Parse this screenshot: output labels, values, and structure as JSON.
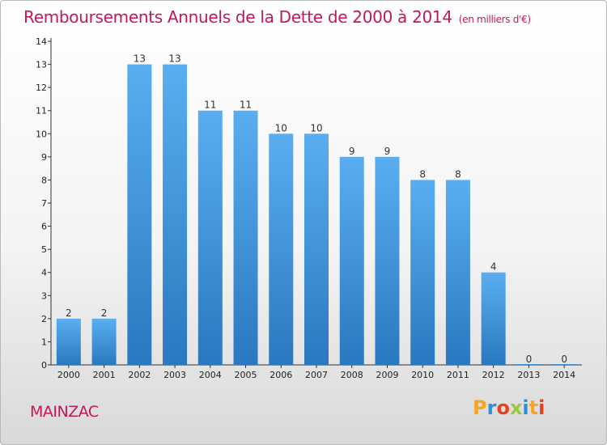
{
  "chart_data": {
    "type": "bar",
    "title": "Remboursements Annuels de la Dette de 2000 à 2014",
    "unit": "(en milliers d'€)",
    "categories": [
      "2000",
      "2001",
      "2002",
      "2003",
      "2004",
      "2005",
      "2006",
      "2007",
      "2008",
      "2009",
      "2010",
      "2011",
      "2012",
      "2013",
      "2014"
    ],
    "values": [
      2,
      2,
      13,
      13,
      11,
      11,
      10,
      10,
      9,
      9,
      8,
      8,
      4,
      0,
      0
    ],
    "value_labels": [
      "2",
      "2",
      "13",
      "13",
      "11",
      "11",
      "10",
      "10",
      "9",
      "9",
      "8",
      "8",
      "4",
      "0",
      "0"
    ],
    "ylim": [
      0,
      14
    ],
    "yticks": [
      0,
      1,
      2,
      3,
      4,
      5,
      6,
      7,
      8,
      9,
      10,
      11,
      12,
      13,
      14
    ],
    "bar_color": "#3d8fd6",
    "grid": false
  },
  "footer": {
    "commune": "MAINZAC",
    "brand": [
      "P",
      "r",
      "o",
      "x",
      "i",
      "t",
      "i"
    ],
    "brand_colors": [
      "#f5a623",
      "#2f8fd3",
      "#e8401c",
      "#9cc83c",
      "#2f8fd3",
      "#f5a623",
      "#e8401c"
    ]
  }
}
